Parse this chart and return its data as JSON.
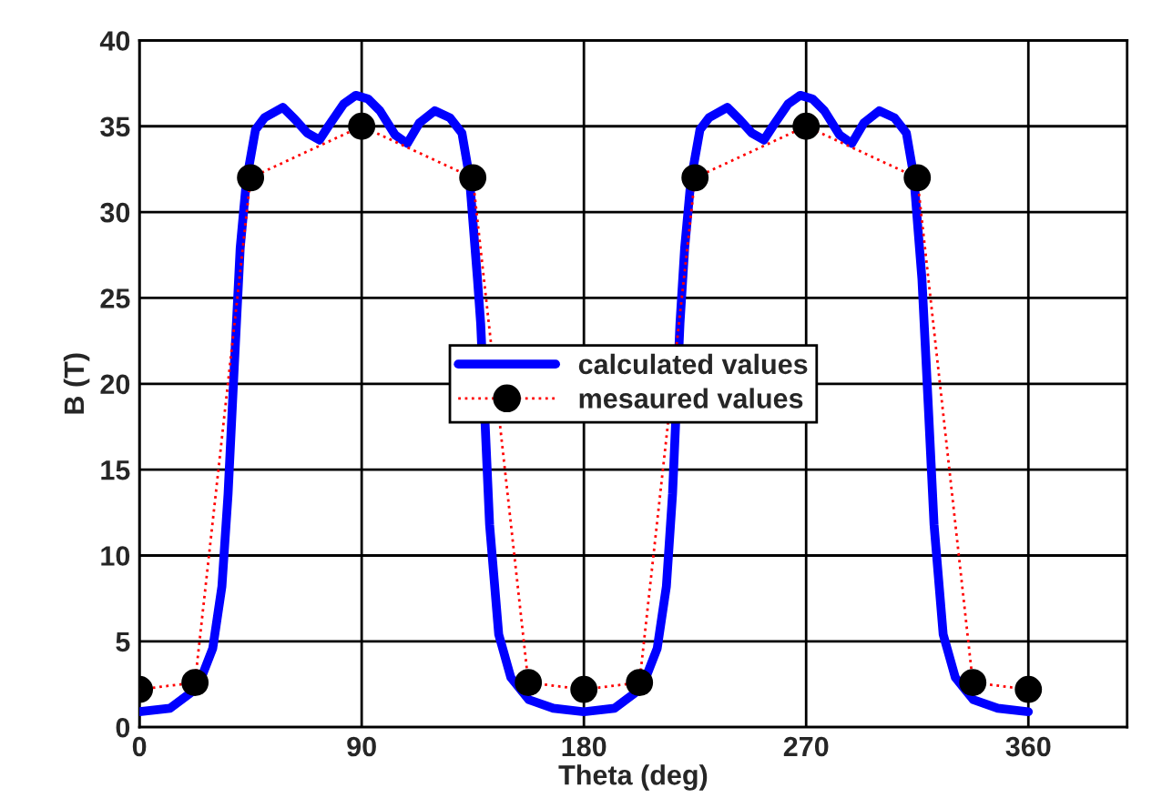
{
  "chart_data": {
    "type": "line",
    "xlabel": "Theta (deg)",
    "ylabel": "B (T)",
    "xlim": [
      0,
      400
    ],
    "xticks": [
      0,
      90,
      180,
      270,
      360
    ],
    "ylim": [
      0,
      40
    ],
    "yticks": [
      0,
      5,
      10,
      15,
      20,
      25,
      30,
      35,
      40
    ],
    "grid": true,
    "legend": "center",
    "series": [
      {
        "name": "calculated values",
        "color": "#0000ff",
        "marker": "none",
        "line_style": "solid",
        "x": [
          0,
          12.4,
          23.5,
          29.7,
          33.4,
          35.9,
          38.3,
          40.8,
          43.3,
          47,
          50.7,
          58.1,
          63,
          68,
          72.9,
          76.5,
          82.7,
          87.6,
          92.5,
          97.4,
          103.5,
          108.5,
          113.4,
          119.6,
          125.7,
          130.6,
          133.6,
          136.9,
          138.2,
          141.8,
          145.5,
          150.4,
          157.7,
          167.6,
          180,
          192.4,
          203.5,
          209.7,
          213.4,
          215.9,
          218.9,
          220.8,
          223.3,
          227,
          230.7,
          238.1,
          243,
          248,
          252.9,
          256.5,
          262.7,
          267.6,
          272.5,
          277.4,
          283.5,
          288.5,
          293.4,
          299.6,
          305.7,
          310.6,
          313.6,
          316.9,
          319.4,
          321.8,
          325.5,
          330.4,
          337.7,
          347.6,
          360
        ],
        "values": [
          0.9,
          1.1,
          2.3,
          4.6,
          8.2,
          13.6,
          20.7,
          27.9,
          31.8,
          34.8,
          35.5,
          36.1,
          35.4,
          34.6,
          34.2,
          35.0,
          36.3,
          36.8,
          36.6,
          35.9,
          34.5,
          34.0,
          35.2,
          35.9,
          35.5,
          34.6,
          32.1,
          26.1,
          23.5,
          11.8,
          5.4,
          2.9,
          1.6,
          1.1,
          0.9,
          1.1,
          2.3,
          4.6,
          8.2,
          13.6,
          23.5,
          27.9,
          31.8,
          34.8,
          35.5,
          36.1,
          35.4,
          34.6,
          34.2,
          35.0,
          36.3,
          36.8,
          36.6,
          35.9,
          34.5,
          34.0,
          35.2,
          35.9,
          35.5,
          34.6,
          32.1,
          26.1,
          18.9,
          11.8,
          5.4,
          2.9,
          1.6,
          1.1,
          0.9
        ]
      },
      {
        "name": "mesaured values",
        "color": "#ff0000",
        "marker": "circle",
        "line_style": "dotted",
        "x": [
          0,
          22.5,
          45,
          90,
          135,
          157.5,
          180,
          202.5,
          225,
          270,
          315,
          337.5,
          360
        ],
        "values": [
          2.2,
          2.6,
          32,
          35,
          32,
          2.6,
          2.2,
          2.6,
          32,
          35,
          32,
          2.6,
          2.2
        ]
      }
    ]
  }
}
